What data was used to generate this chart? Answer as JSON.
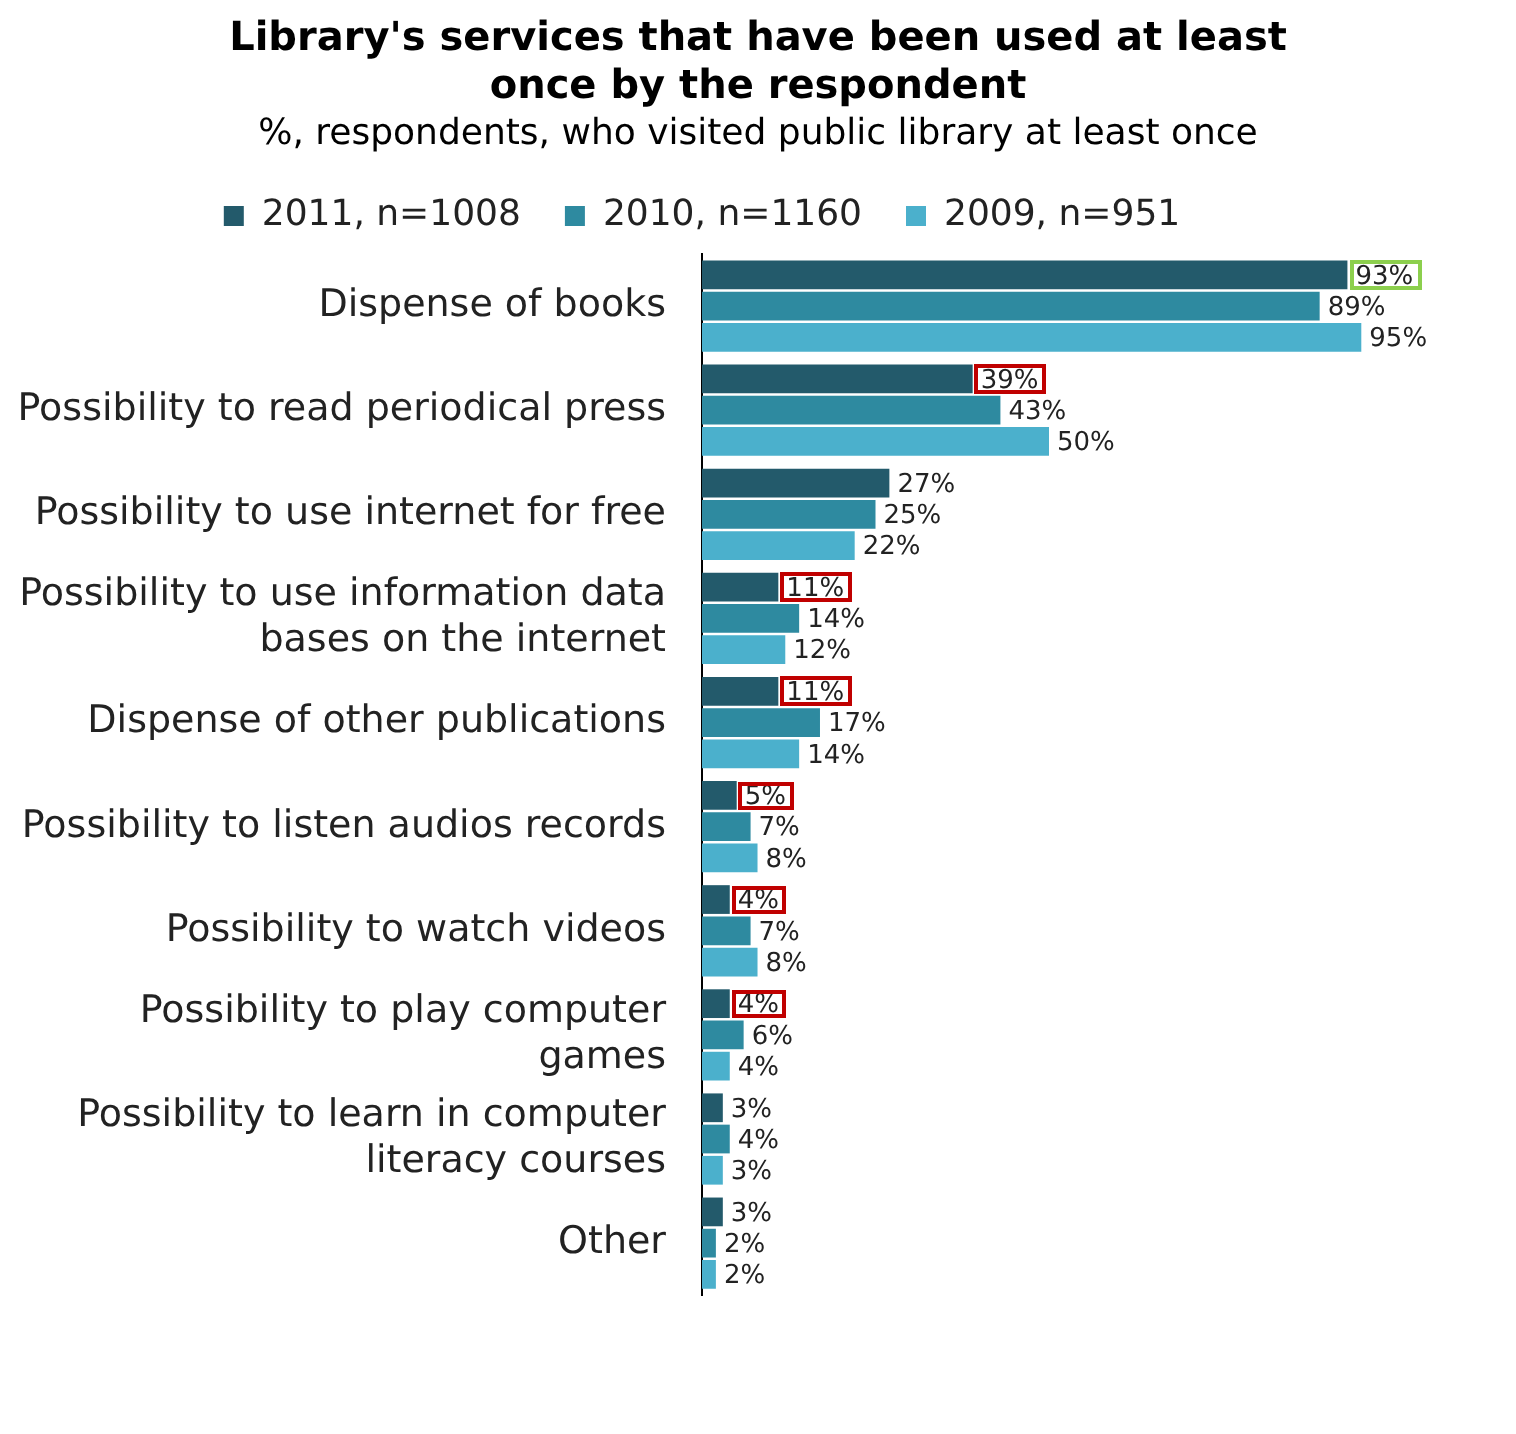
{
  "chart_data": {
    "type": "bar",
    "orientation": "horizontal",
    "title": "Library's services that have been used at least once by the respondent",
    "subtitle": "%, respondents, who visited public library at least once",
    "categories": [
      "Dispense of books",
      "Possibility to read periodical press",
      "Possibility to use internet for free",
      "Possibility to use information data\nbases on the internet",
      "Dispense of other publications",
      "Possibility to listen audios records",
      "Possibility to watch videos",
      "Possibility to play computer\ngames",
      "Possibility to learn in computer\nliteracy courses",
      "Other"
    ],
    "series": [
      {
        "name": "2011, n=1008",
        "color": "#235a6b",
        "values": [
          93,
          39,
          27,
          11,
          11,
          5,
          4,
          4,
          3,
          3
        ],
        "value_labels": [
          "93%",
          "39%",
          "27%",
          "11%",
          "11%",
          "5%",
          "4%",
          "4%",
          "3%",
          "3%"
        ]
      },
      {
        "name": "2010, n=1160",
        "color": "#2e8aa0",
        "values": [
          89,
          43,
          25,
          14,
          17,
          7,
          7,
          6,
          4,
          2
        ],
        "value_labels": [
          "89%",
          "43%",
          "25%",
          "14%",
          "17%",
          "7%",
          "7%",
          "6%",
          "4%",
          "2%"
        ]
      },
      {
        "name": "2009, n=951",
        "color": "#4bb0cc",
        "values": [
          95,
          50,
          22,
          12,
          14,
          8,
          8,
          4,
          3,
          2
        ],
        "value_labels": [
          "95%",
          "50%",
          "22%",
          "12%",
          "14%",
          "8%",
          "8%",
          "4%",
          "3%",
          "2%"
        ]
      }
    ],
    "legend": "top",
    "tick_labels": "y"
  }
}
